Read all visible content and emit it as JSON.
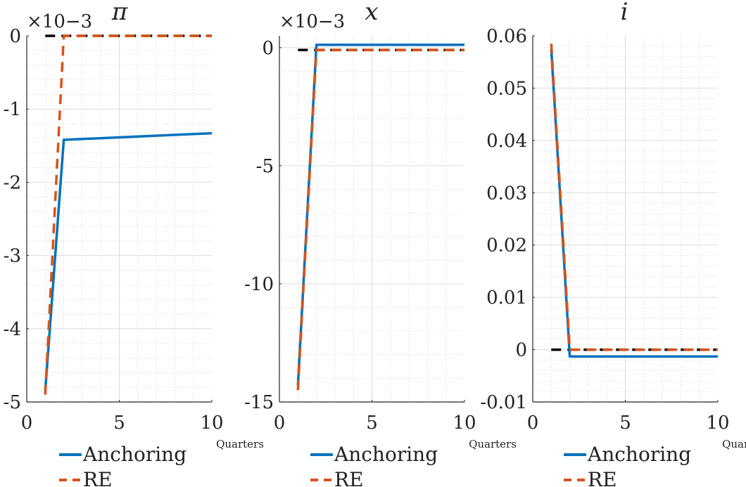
{
  "legend": {
    "anchoring": "Anchoring",
    "re": "RE"
  },
  "colors": {
    "anchoring": "#0072BD",
    "re": "#D95319",
    "zero": "#000000"
  },
  "chart_data": [
    {
      "type": "line",
      "title": "π",
      "xlabel": "Quarters",
      "ylabel": "",
      "exponent_label": "×10−3",
      "xlim": [
        0,
        10
      ],
      "ylim": [
        -5,
        0
      ],
      "xticks": [
        0,
        5,
        10
      ],
      "yticks": [
        0,
        -1,
        -2,
        -3,
        -4,
        -5
      ],
      "ytick_labels": [
        "0",
        "-1",
        "-2",
        "-3",
        "-4",
        "-5"
      ],
      "grid": true,
      "minor_grid": true,
      "series": [
        {
          "name": "Anchoring",
          "style": "solid",
          "x": [
            1,
            2,
            10
          ],
          "y": [
            -4.85,
            -1.42,
            -1.33
          ]
        },
        {
          "name": "RE",
          "style": "dashed",
          "x": [
            1,
            2,
            3,
            10
          ],
          "y": [
            -4.9,
            0,
            0,
            0
          ]
        },
        {
          "name": "",
          "style": "zero",
          "x": [
            1,
            10
          ],
          "y": [
            0,
            0
          ]
        }
      ]
    },
    {
      "type": "line",
      "title": "x",
      "xlabel": "Quarters",
      "ylabel": "",
      "exponent_label": "×10−3",
      "xlim": [
        0,
        10
      ],
      "ylim": [
        -15,
        0.5
      ],
      "xticks": [
        0,
        5,
        10
      ],
      "yticks": [
        0,
        -5,
        -10,
        -15
      ],
      "ytick_labels": [
        "0",
        "-5",
        "-10",
        "-15"
      ],
      "grid": true,
      "minor_grid": true,
      "series": [
        {
          "name": "Anchoring",
          "style": "solid",
          "x": [
            1,
            2,
            10
          ],
          "y": [
            -14.3,
            0.12,
            0.12
          ]
        },
        {
          "name": "RE",
          "style": "dashed",
          "x": [
            1,
            2,
            10
          ],
          "y": [
            -14.5,
            -0.1,
            -0.1
          ]
        },
        {
          "name": "",
          "style": "zero",
          "x": [
            1,
            10
          ],
          "y": [
            -0.1,
            -0.1
          ]
        }
      ]
    },
    {
      "type": "line",
      "title": "i",
      "xlabel": "Quarters",
      "ylabel": "",
      "exponent_label": "",
      "xlim": [
        0,
        10
      ],
      "ylim": [
        -0.01,
        0.06
      ],
      "xticks": [
        0,
        5,
        10
      ],
      "yticks": [
        0.06,
        0.05,
        0.04,
        0.03,
        0.02,
        0.01,
        0,
        -0.01
      ],
      "ytick_labels": [
        "0.06",
        "0.05",
        "0.04",
        "0.03",
        "0.02",
        "0.01",
        "0",
        "-0.01"
      ],
      "grid": true,
      "minor_grid": true,
      "series": [
        {
          "name": "Anchoring",
          "style": "solid",
          "x": [
            1,
            2,
            10
          ],
          "y": [
            0.0575,
            -0.0013,
            -0.0013
          ]
        },
        {
          "name": "RE",
          "style": "dashed",
          "x": [
            1,
            2,
            10
          ],
          "y": [
            0.0585,
            0,
            0
          ]
        },
        {
          "name": "",
          "style": "zero",
          "x": [
            1,
            10
          ],
          "y": [
            0,
            0
          ]
        }
      ]
    }
  ]
}
